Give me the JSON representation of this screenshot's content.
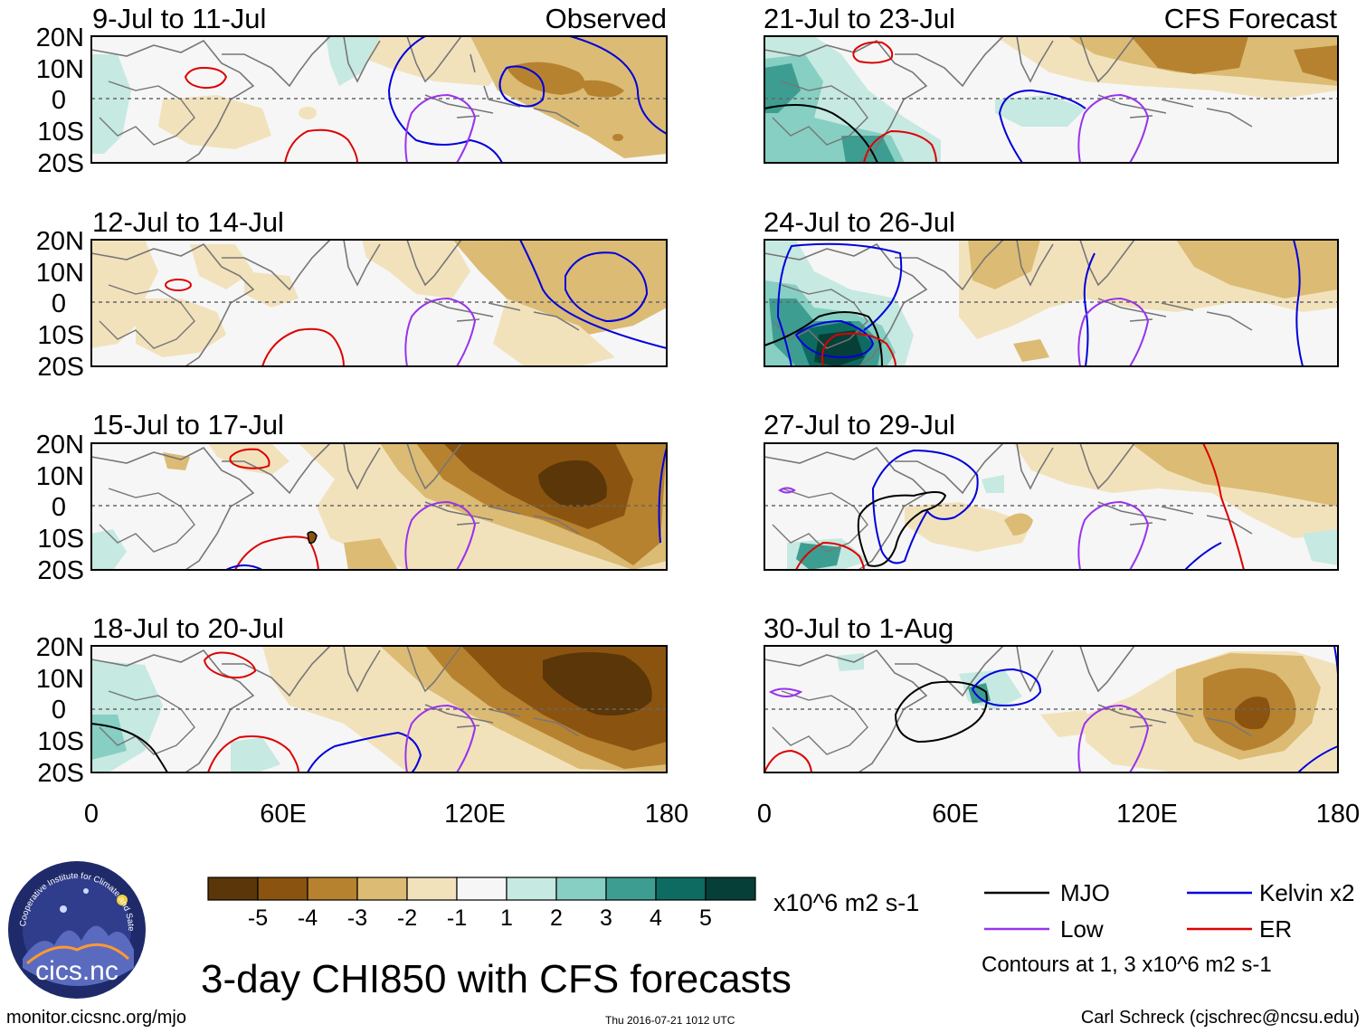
{
  "figure": {
    "title": "3-day CHI850 with CFS forecasts",
    "left_header": "Observed",
    "right_header": "CFS Forecast",
    "lat_labels": [
      "20N",
      "10N",
      "0",
      "10S",
      "20S"
    ],
    "lon_labels": [
      "0",
      "60E",
      "120E",
      "180"
    ],
    "left_panels": [
      {
        "period": "9-Jul to 11-Jul"
      },
      {
        "period": "12-Jul to 14-Jul"
      },
      {
        "period": "15-Jul to 17-Jul"
      },
      {
        "period": "18-Jul to 20-Jul"
      }
    ],
    "right_panels": [
      {
        "period": "21-Jul to 23-Jul"
      },
      {
        "period": "24-Jul to 26-Jul"
      },
      {
        "period": "27-Jul to 29-Jul"
      },
      {
        "period": "30-Jul to 1-Aug"
      }
    ]
  },
  "colorbar": {
    "units": "x10^6 m2 s-1",
    "tick_labels": [
      "-5",
      "-4",
      "-3",
      "-2",
      "-1",
      "1",
      "2",
      "3",
      "4",
      "5"
    ],
    "colors": [
      "#5a3608",
      "#8a5410",
      "#b7822f",
      "#dcbb74",
      "#f2e2bc",
      "#f6f6f6",
      "#c6e9e1",
      "#86cfc2",
      "#3e9d91",
      "#0e6b61",
      "#063f37"
    ]
  },
  "legend": {
    "items": [
      {
        "label": "MJO",
        "color": "#000000"
      },
      {
        "label": "Kelvin x2",
        "color": "#0000dd"
      },
      {
        "label": "Low",
        "color": "#9933ee"
      },
      {
        "label": "ER",
        "color": "#dd0000"
      }
    ],
    "note": "Contours at 1, 3 x10^6 m2 s-1"
  },
  "footer": {
    "url": "monitor.cicsnc.org/mjo",
    "timestamp": "Thu 2016-07-21 1012 UTC",
    "credit": "Carl Schreck (cjschrec@ncsu.edu)"
  },
  "logo": {
    "text": "cics.nc",
    "ring_text": "Cooperative Institute for Climate and Satellites"
  }
}
